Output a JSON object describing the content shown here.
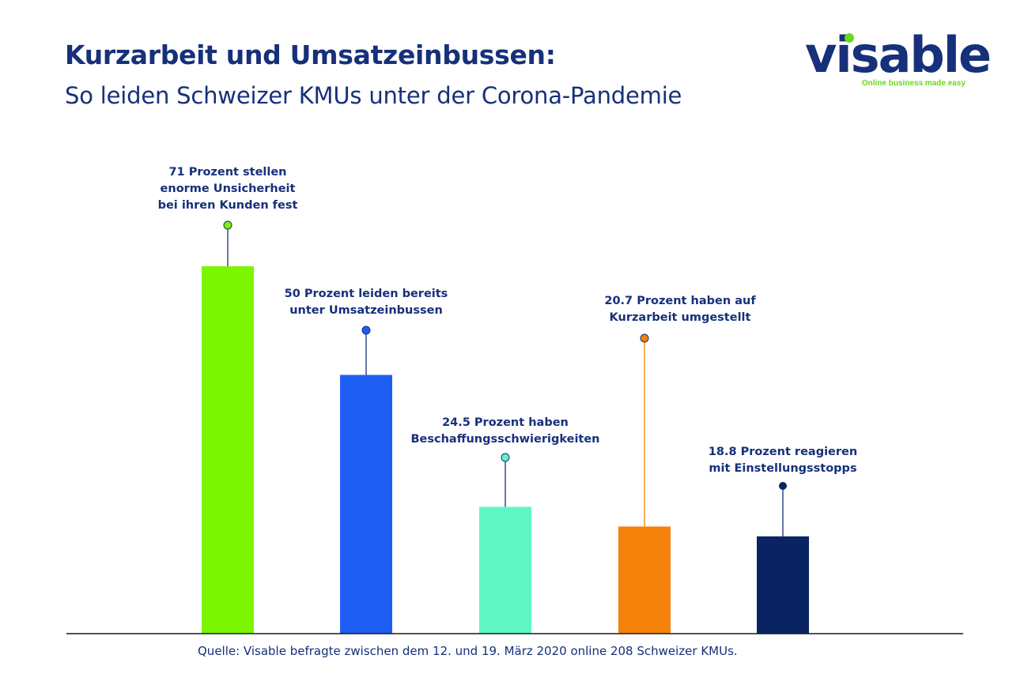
{
  "header": {
    "title": "Kurzarbeit und Umsatzeinbussen:",
    "subtitle": "So leiden Schweizer KMUs unter der Corona-Pandemie"
  },
  "logo": {
    "word": "visable",
    "tagline": "Online business made easy",
    "colors": {
      "word": "#16307a",
      "accent": "#66d91c"
    }
  },
  "chart_data": {
    "type": "bar",
    "title": "Kurzarbeit und Umsatzeinbussen:",
    "subtitle": "So leiden Schweizer KMUs unter der Corona-Pandemie",
    "xlabel": "",
    "ylabel": "",
    "ylim": [
      0,
      75
    ],
    "grid": false,
    "legend": "none",
    "categories": [
      "71 Prozent stellen enorme Unsicherheit bei ihren Kunden fest",
      "50 Prozent leiden bereits unter Umsatzeinbussen",
      "24.5 Prozent haben Beschaffungsschwierigkeiten",
      "20.7 Prozent haben auf Kurzarbeit umgestellt",
      "18.8 Prozent reagieren mit Einstellungsstopps"
    ],
    "values": [
      71,
      50,
      24.5,
      20.7,
      18.8
    ],
    "colors": [
      "#7cf500",
      "#1f5ef2",
      "#5ef7c3",
      "#f5820a",
      "#0a2463"
    ],
    "annotations": [
      {
        "lines": [
          "71 Prozent stellen",
          "enorme Unsicherheit",
          "bei ihren Kunden fest"
        ]
      },
      {
        "lines": [
          "50 Prozent leiden bereits",
          "unter Umsatzeinbussen"
        ]
      },
      {
        "lines": [
          "24.5 Prozent haben",
          "Beschaffungsschwierigkeiten"
        ]
      },
      {
        "lines": [
          "20.7 Prozent haben auf",
          "Kurzarbeit umgestellt"
        ]
      },
      {
        "lines": [
          "18.8 Prozent reagieren",
          "mit Einstellungsstopps"
        ]
      }
    ],
    "axis_color": "#1a1a1a",
    "stem_color": "#16307a"
  },
  "source": "Quelle: Visable befragte zwischen dem 12. und 19. März 2020 online 208 Schweizer KMUs."
}
